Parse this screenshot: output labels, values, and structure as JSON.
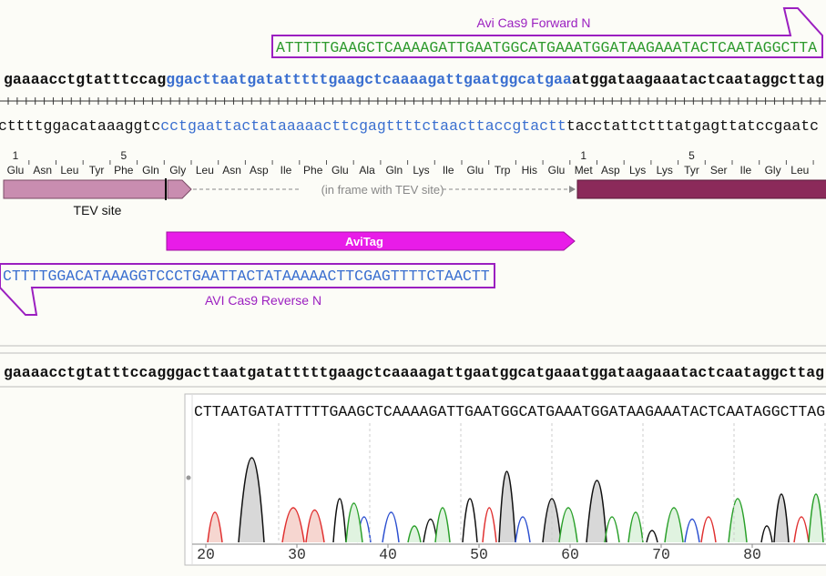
{
  "forward_primer": {
    "name": "Avi Cas9 Forward N",
    "sequence": "ATTTTTGAAGCTCAAAAGATTGAATGGCATGAAATGGATAAGAAATACTCAATAGGCTTA"
  },
  "top_strand": [
    "gaaaacctgtatttccag",
    "ggacttaatgatatttttgaagctcaaaagattgaatggcatgaa",
    "atggataagaaatactcaataggcttag"
  ],
  "bottom_strand": [
    "cttttggacataaaggtc",
    "cctgaattactataaaaacttcgagttttctaacttaccgtactt",
    "tacctattctttatgagttatccgaatc"
  ],
  "translation": {
    "tev_numbers": [
      "1",
      "5"
    ],
    "cas9_numbers": [
      "1",
      "5"
    ],
    "amino_acids": [
      "Glu",
      "Asn",
      "Leu",
      "Tyr",
      "Phe",
      "Gln",
      "Gly",
      "Leu",
      "Asn",
      "Asp",
      "Ile",
      "Phe",
      "Glu",
      "Ala",
      "Gln",
      "Lys",
      "Ile",
      "Glu",
      "Trp",
      "His",
      "Glu",
      "Met",
      "Asp",
      "Lys",
      "Lys",
      "Tyr",
      "Ser",
      "Ile",
      "Gly",
      "Leu"
    ],
    "note": "(in frame with TEV site)"
  },
  "features": {
    "tev": "TEV site",
    "avitag": "AviTag"
  },
  "reverse_primer": {
    "sequence": "CTTTTGGACATAAAGGTCCCTGAATTACTATAAAAACTTCGAGTTTTCTAACTT",
    "name": "AVI Cas9 Reverse N"
  },
  "consensus": "gaaaacctgtatttccagggacttaatgatatttttgaagctcaaaagattgaatggcatgaaatggataagaaatactcaataggcttag",
  "trace": {
    "sequence": "CTTAATGATATTTTTGAAGCTCAAAAGATTGAATGGCATGAAATGGATAAGAAATACTCAATAGGCTTAG",
    "ticks": [
      "20",
      "30",
      "40",
      "50",
      "60",
      "70",
      "80"
    ]
  }
}
